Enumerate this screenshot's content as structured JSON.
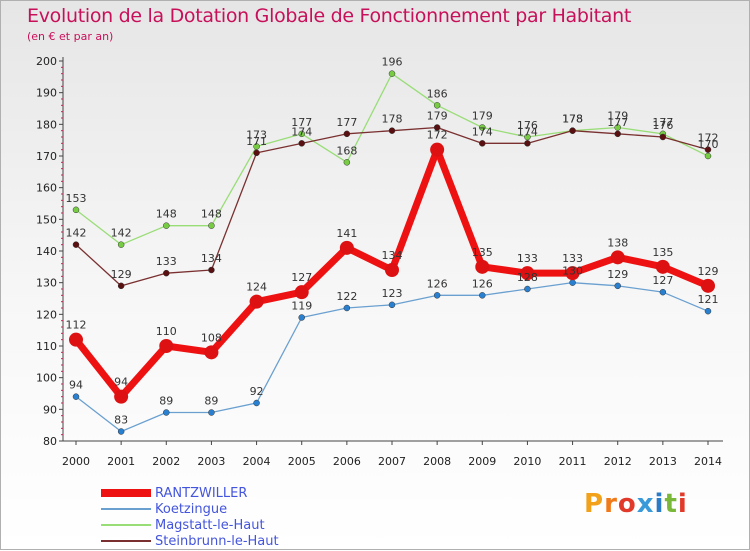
{
  "title": "Evolution de la Dotation Globale de Fonctionnement par Habitant",
  "subtitle": "(en € et par an)",
  "logo": {
    "text": "Proxiti",
    "letters": [
      "P",
      "r",
      "o",
      "x",
      "i",
      "t",
      "i"
    ],
    "colors": [
      "#f2a21a",
      "#f07a1a",
      "#e23a2a",
      "#3a9ad9",
      "#2a7bc8",
      "#7ab83a",
      "#e23a2a"
    ]
  },
  "chart_data": {
    "type": "line",
    "title": "Evolution de la Dotation Globale de Fonctionnement par Habitant",
    "subtitle": "(en € et par an)",
    "xlabel": "",
    "ylabel": "",
    "ylim": [
      80,
      200
    ],
    "yticks": [
      80,
      90,
      100,
      110,
      120,
      130,
      140,
      150,
      160,
      170,
      180,
      190,
      200
    ],
    "grid": false,
    "legend_position": "bottom-left",
    "categories": [
      "2000",
      "2001",
      "2002",
      "2003",
      "2004",
      "2005",
      "2006",
      "2007",
      "2008",
      "2009",
      "2010",
      "2011",
      "2012",
      "2013",
      "2014"
    ],
    "series": [
      {
        "name": "Koetzingue",
        "color": "#6aa0d0",
        "marker": "#2a80d0",
        "values": [
          94,
          83,
          89,
          89,
          92,
          119,
          122,
          123,
          126,
          126,
          128,
          130,
          129,
          127,
          121
        ],
        "labels": [
          "94",
          "83",
          "89",
          "89",
          "92",
          "119",
          "122",
          "123",
          "126",
          "126",
          "128",
          "130",
          "129",
          "127",
          "121"
        ]
      },
      {
        "name": "Magstatt-le-Haut",
        "color": "#99dd77",
        "marker": "#77cc44",
        "values": [
          153,
          142,
          148,
          148,
          173,
          177,
          168,
          196,
          186,
          179,
          176,
          178,
          179,
          177,
          170
        ],
        "labels": [
          "153",
          "142",
          "148",
          "148",
          "173",
          "177",
          "168",
          "196",
          "186",
          "179",
          "176",
          "178",
          "179",
          "177",
          "170"
        ]
      },
      {
        "name": "Steinbrunn-le-Haut",
        "color": "#7a3030",
        "marker": "#5a1010",
        "values": [
          142,
          129,
          133,
          134,
          171,
          174,
          177,
          178,
          179,
          174,
          174,
          178,
          177,
          176,
          172
        ],
        "labels": [
          "142",
          "129",
          "133",
          "134",
          "171",
          "174",
          "177",
          "178",
          "179",
          "174",
          "174",
          "178",
          "177",
          "176",
          "172"
        ]
      },
      {
        "name": "RANTZWILLER",
        "color": "#ee1111",
        "marker": "#dd1111",
        "values": [
          112,
          94,
          110,
          108,
          124,
          127,
          141,
          134,
          172,
          135,
          133,
          133,
          138,
          135,
          129
        ],
        "labels": [
          "112",
          "94",
          "110",
          "108",
          "124",
          "127",
          "141",
          "134",
          "172",
          "135",
          "133",
          "133",
          "138",
          "135",
          "129"
        ]
      }
    ],
    "legend_order": [
      "RANTZWILLER",
      "Koetzingue",
      "Magstatt-le-Haut",
      "Steinbrunn-le-Haut"
    ]
  }
}
